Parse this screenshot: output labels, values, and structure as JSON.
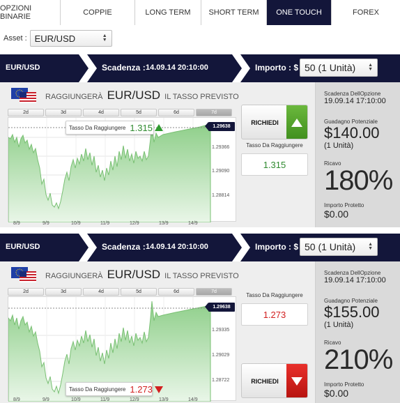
{
  "tabs": [
    {
      "label": "OPZIONI BINARIE"
    },
    {
      "label": "COPPIE"
    },
    {
      "label": "LONG TERM"
    },
    {
      "label": "SHORT TERM"
    },
    {
      "label": "ONE TOUCH"
    },
    {
      "label": "FOREX"
    }
  ],
  "active_tab": "ONE TOUCH",
  "asset": {
    "label": "Asset :",
    "value": "EUR/USD"
  },
  "colors": {
    "navy": "#13163a",
    "up_green": "#2f8a2f",
    "down_red": "#d21f1f",
    "chart_fill": "#a8d9a5"
  },
  "panels": [
    {
      "pair": "EUR/USD",
      "expiry_label": "Scadenza :",
      "expiry_value": "14.09.14 20:10:00",
      "amount_label": "Importo : $",
      "amount_value": "50 (1 Unità)",
      "reach_prefix": "RAGGIUNGERÀ",
      "reach_pair": "EUR/USD",
      "reach_suffix": "IL TASSO PREVISTO",
      "periods": [
        "2d",
        "3d",
        "4d",
        "5d",
        "6d",
        "7d"
      ],
      "active_period": "7d",
      "target_label": "Tasso Da Raggiungere",
      "target_value": "1.315",
      "direction": "up",
      "button_label": "RICHIEDI",
      "current_price": "1.29638",
      "y_labels": [
        "1.29366",
        "1.29090",
        "1.28814"
      ],
      "x_labels": [
        "8/9",
        "9/9",
        "10/9",
        "11/9",
        "12/9",
        "13/9",
        "14/9"
      ],
      "option_expiry_label": "Scadenza DellOpzione",
      "option_expiry_value": "19.09.14 17:10:00",
      "potential_label": "Guadagno Potenziale",
      "potential_value": "$140.00",
      "potential_units": "(1 Unità)",
      "return_label": "Ricavo",
      "return_value": "180%",
      "protected_label": "Importo Protetto",
      "protected_value": "$0.00"
    },
    {
      "pair": "EUR/USD",
      "expiry_label": "Scadenza :",
      "expiry_value": "14.09.14 20:10:00",
      "amount_label": "Importo : $",
      "amount_value": "50 (1 Unità)",
      "reach_prefix": "RAGGIUNGERÀ",
      "reach_pair": "EUR/USD",
      "reach_suffix": "IL TASSO PREVISTO",
      "periods": [
        "2d",
        "3d",
        "4d",
        "5d",
        "6d",
        "7d"
      ],
      "active_period": "7d",
      "target_label": "Tasso Da Raggiungere",
      "target_value": "1.273",
      "direction": "down",
      "button_label": "RICHIEDI",
      "current_price": "1.29638",
      "y_labels": [
        "1.29335",
        "1.29029",
        "1.28722"
      ],
      "x_labels": [
        "8/9",
        "9/9",
        "10/9",
        "11/9",
        "12/9",
        "13/9",
        "14/9"
      ],
      "option_expiry_label": "Scadenza DellOpzione",
      "option_expiry_value": "19.09.14 17:10:00",
      "potential_label": "Guadagno Potenziale",
      "potential_value": "$155.00",
      "potential_units": "(1 Unità)",
      "return_label": "Ricavo",
      "return_value": "210%",
      "protected_label": "Importo Protetto",
      "protected_value": "$0.00"
    }
  ]
}
